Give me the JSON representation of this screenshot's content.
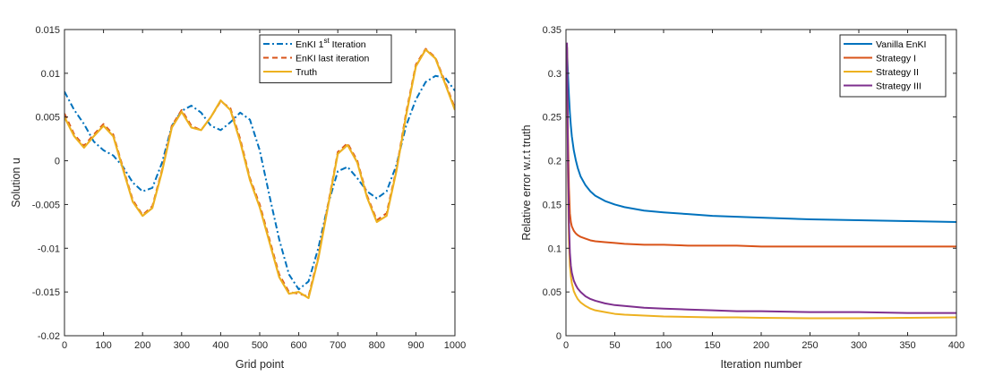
{
  "chart_data": [
    {
      "type": "line",
      "title": "",
      "xlabel": "Grid point",
      "ylabel": "Solution u",
      "xlim": [
        0,
        1000
      ],
      "ylim": [
        -0.02,
        0.015
      ],
      "xticks": [
        "0",
        "100",
        "200",
        "300",
        "400",
        "500",
        "600",
        "700",
        "800",
        "900",
        "1000"
      ],
      "yticks": [
        "-0.02",
        "-0.015",
        "-0.01",
        "-0.005",
        "0",
        "0.005",
        "0.01",
        "0.015"
      ],
      "legend_position": "top-right",
      "x": [
        0,
        25,
        50,
        75,
        100,
        125,
        150,
        175,
        200,
        225,
        250,
        275,
        300,
        325,
        350,
        375,
        400,
        425,
        450,
        475,
        500,
        525,
        550,
        575,
        600,
        625,
        650,
        675,
        700,
        725,
        750,
        775,
        800,
        825,
        850,
        875,
        900,
        925,
        950,
        975,
        1000
      ],
      "series": [
        {
          "name": "EnKI 1st Iteration",
          "legend_base": "EnKI 1",
          "legend_sup": "st",
          "legend_tail": " Iteration",
          "color": "#0072BD",
          "style": "dashdot",
          "values": [
            0.0079,
            0.0058,
            0.0042,
            0.0022,
            0.0012,
            0.0006,
            -0.0007,
            -0.0025,
            -0.0035,
            -0.0031,
            -0.0002,
            0.004,
            0.0057,
            0.0063,
            0.0055,
            0.004,
            0.0035,
            0.0044,
            0.0055,
            0.0047,
            0.0012,
            -0.004,
            -0.009,
            -0.013,
            -0.0147,
            -0.0138,
            -0.01,
            -0.005,
            -0.0012,
            -0.0007,
            -0.002,
            -0.0035,
            -0.0043,
            -0.0035,
            -0.0005,
            0.004,
            0.007,
            0.009,
            0.0097,
            0.0095,
            0.008
          ]
        },
        {
          "name": "EnKI last iteration",
          "color": "#D95319",
          "style": "dashed",
          "values": [
            0.0054,
            0.003,
            0.0017,
            0.003,
            0.0042,
            0.003,
            -0.0008,
            -0.0045,
            -0.0062,
            -0.0052,
            -0.001,
            0.004,
            0.0058,
            0.004,
            0.0035,
            0.005,
            0.0068,
            0.006,
            0.0025,
            -0.002,
            -0.005,
            -0.009,
            -0.013,
            -0.015,
            -0.0152,
            -0.0155,
            -0.011,
            -0.005,
            0.001,
            0.002,
            0.0,
            -0.004,
            -0.0068,
            -0.006,
            -0.001,
            0.0055,
            0.011,
            0.0128,
            0.0118,
            0.009,
            0.006
          ]
        },
        {
          "name": "Truth",
          "color": "#EDB120",
          "style": "solid",
          "values": [
            0.005,
            0.0028,
            0.0015,
            0.0028,
            0.004,
            0.0028,
            -0.001,
            -0.0047,
            -0.0063,
            -0.0054,
            -0.0012,
            0.0038,
            0.0056,
            0.0038,
            0.0035,
            0.005,
            0.0069,
            0.0058,
            0.0022,
            -0.0022,
            -0.0053,
            -0.0093,
            -0.0133,
            -0.0152,
            -0.015,
            -0.0157,
            -0.0112,
            -0.0052,
            0.0008,
            0.0018,
            -0.0002,
            -0.0042,
            -0.007,
            -0.0063,
            -0.0012,
            0.0052,
            0.0108,
            0.0127,
            0.0117,
            0.0088,
            0.0058
          ]
        }
      ]
    },
    {
      "type": "line",
      "title": "",
      "xlabel": "Iteration number",
      "ylabel": "Relative error w.r.t truth",
      "xlim": [
        0,
        400
      ],
      "ylim": [
        0,
        0.35
      ],
      "xticks": [
        "0",
        "50",
        "100",
        "150",
        "200",
        "250",
        "300",
        "350",
        "400"
      ],
      "yticks": [
        "0",
        "0.05",
        "0.1",
        "0.15",
        "0.2",
        "0.25",
        "0.3",
        "0.35"
      ],
      "legend_position": "top-right",
      "x": [
        1,
        2,
        3,
        4,
        5,
        6,
        8,
        10,
        12,
        15,
        20,
        25,
        30,
        40,
        50,
        60,
        80,
        100,
        125,
        150,
        175,
        200,
        250,
        300,
        350,
        400
      ],
      "series": [
        {
          "name": "Vanilla EnKI",
          "color": "#0072BD",
          "values": [
            0.33,
            0.3,
            0.275,
            0.255,
            0.24,
            0.228,
            0.212,
            0.201,
            0.192,
            0.182,
            0.172,
            0.165,
            0.16,
            0.154,
            0.15,
            0.147,
            0.143,
            0.141,
            0.139,
            0.137,
            0.136,
            0.135,
            0.133,
            0.132,
            0.131,
            0.13
          ]
        },
        {
          "name": "Strategy I",
          "color": "#D95319",
          "values": [
            0.33,
            0.23,
            0.17,
            0.14,
            0.13,
            0.125,
            0.12,
            0.117,
            0.115,
            0.113,
            0.111,
            0.109,
            0.108,
            0.107,
            0.106,
            0.105,
            0.104,
            0.104,
            0.103,
            0.103,
            0.103,
            0.102,
            0.102,
            0.102,
            0.102,
            0.102
          ]
        },
        {
          "name": "Strategy II",
          "color": "#EDB120",
          "values": [
            0.33,
            0.18,
            0.11,
            0.08,
            0.068,
            0.06,
            0.051,
            0.046,
            0.042,
            0.038,
            0.034,
            0.031,
            0.029,
            0.027,
            0.025,
            0.024,
            0.023,
            0.022,
            0.0215,
            0.021,
            0.021,
            0.0205,
            0.02,
            0.02,
            0.0205,
            0.021
          ]
        },
        {
          "name": "Strategy III",
          "color": "#7E2F8E",
          "values": [
            0.335,
            0.2,
            0.13,
            0.095,
            0.08,
            0.072,
            0.063,
            0.058,
            0.054,
            0.05,
            0.045,
            0.042,
            0.04,
            0.037,
            0.035,
            0.034,
            0.032,
            0.031,
            0.03,
            0.029,
            0.028,
            0.028,
            0.027,
            0.027,
            0.026,
            0.026
          ]
        }
      ]
    }
  ]
}
